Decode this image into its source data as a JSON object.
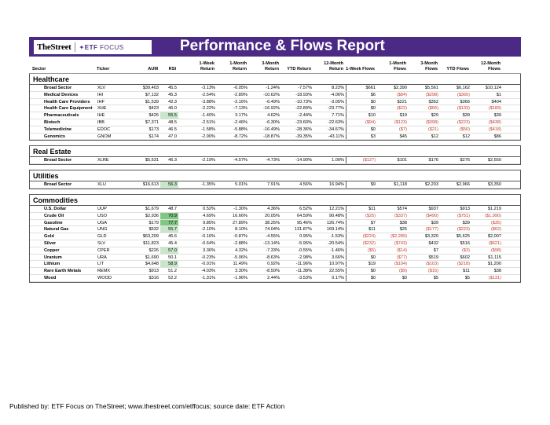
{
  "header": {
    "logo_thestreet": "TheStreet",
    "logo_etf": "ETF",
    "logo_focus": "FOCUS",
    "title": "Performance & Flows Report"
  },
  "columns": {
    "sector": "Sector",
    "ticker": "Ticker",
    "aum": "AUM",
    "rsi": "RSI",
    "ret_1w": "1-Week Return",
    "ret_1m": "1-Month Return",
    "ret_3m": "3-Month Return",
    "ret_ytd": "YTD Return",
    "ret_12m": "12-Month Return",
    "flow_1w": "1-Week Flows",
    "flow_1m": "1-Month Flows",
    "flow_3m": "3-Month Flows",
    "flow_ytd": "YTD Flows",
    "flow_12m": "12-Month Flows"
  },
  "sections": [
    {
      "name": "Healthcare",
      "rows": [
        [
          "Broad Sector",
          "XLV",
          "$39,403",
          "45.5",
          "-3.13%",
          "-0.05%",
          "-1.24%",
          "-7.57%",
          "8.22%",
          "$661",
          "$2,390",
          "$5,561",
          "$6,162",
          "$10,124"
        ],
        [
          "Medical Devices",
          "IHI",
          "$7,132",
          "45.3",
          "-2.54%",
          "-2.89%",
          "-10.62%",
          "-18.93%",
          "-4.06%",
          "$6",
          "($84)",
          "($298)",
          "($365)",
          "$1"
        ],
        [
          "Health Care Providers",
          "IHF",
          "$1,539",
          "42.3",
          "-3.88%",
          "-2.16%",
          "-6.49%",
          "-10.73%",
          "-3.05%",
          "$0",
          "$221",
          "$352",
          "$366",
          "$404"
        ],
        [
          "Health Care Equipment",
          "XHE",
          "$423",
          "46.0",
          "-2.22%",
          "-7.13%",
          "-16.92%",
          "-22.89%",
          "-23.77%",
          "$0",
          "($22)",
          "($66)",
          "($133)",
          "($189)"
        ],
        [
          "Pharmaceuticals",
          "IHE",
          "$426",
          "55.5",
          "-1.40%",
          "3.17%",
          "4.62%",
          "-2.44%",
          "7.71%",
          "$10",
          "$19",
          "$29",
          "$39",
          "$39"
        ],
        [
          "Biotech",
          "IBB",
          "$7,371",
          "48.5",
          "-2.51%",
          "-2.46%",
          "-6.30%",
          "-23.60%",
          "-22.63%",
          "($94)",
          "($123)",
          "($398)",
          "($223)",
          "($438)"
        ],
        [
          "Telemedicine",
          "EDOC",
          "$173",
          "46.5",
          "-1.58%",
          "-5.88%",
          "-16.49%",
          "-28.36%",
          "-34.67%",
          "$0",
          "($7)",
          "($21)",
          "($56)",
          "($418)"
        ],
        [
          "Genomics",
          "GNOM",
          "$174",
          "47.0",
          "-2.90%",
          "-8.72%",
          "-18.87%",
          "-39.35%",
          "-43.11%",
          "$3",
          "$45",
          "$12",
          "$12",
          "$86"
        ]
      ]
    },
    {
      "name": "Real Estate",
      "rows": [
        [
          "Broad Sector",
          "XLRE",
          "$5,531",
          "46.3",
          "-2.19%",
          "-4.57%",
          "-4.73%",
          "-14.90%",
          "1.09%",
          "($127)",
          "$101",
          "$176",
          "$276",
          "$2,550"
        ]
      ]
    },
    {
      "name": "Utilities",
      "rows": [
        [
          "Broad Sector",
          "XLU",
          "$16,613",
          "56.3",
          "-1.35%",
          "5.01%",
          "7.91%",
          "4.56%",
          "16.94%",
          "$9",
          "$1,118",
          "$2,203",
          "$2,966",
          "$3,350"
        ]
      ]
    },
    {
      "name": "Commodities",
      "rows": [
        [
          "U.S. Dollar",
          "UUP",
          "$1,679",
          "48.7",
          "0.52%",
          "-1.30%",
          "4.36%",
          "6.52%",
          "12.21%",
          "$11",
          "$574",
          "$937",
          "$913",
          "$1,219"
        ],
        [
          "Crude Oil",
          "USO",
          "$2,936",
          "70.9",
          "4.69%",
          "16.66%",
          "20.05%",
          "64.59%",
          "90.48%",
          "($25)",
          "($337)",
          "($490)",
          "($751)",
          "($1,990)"
        ],
        [
          "Gasoline",
          "UGA",
          "$179",
          "77.7",
          "9.85%",
          "27.89%",
          "38.25%",
          "95.46%",
          "126.74%",
          "$7",
          "$38",
          "$39",
          "$39",
          "($35)"
        ],
        [
          "Natural Gas",
          "UNG",
          "$532",
          "55.7",
          "-2.10%",
          "8.10%",
          "74.04%",
          "131.87%",
          "169.14%",
          "$11",
          "$25",
          "($177)",
          "($223)",
          "($62)"
        ],
        [
          "Gold",
          "GLD",
          "$63,209",
          "46.6",
          "-0.16%",
          "-0.87%",
          "-4.55%",
          "0.95%",
          "-1.53%",
          "($224)",
          "($2,289)",
          "$3,320",
          "$5,625",
          "$2,007"
        ],
        [
          "Silver",
          "SLV",
          "$11,823",
          "45.4",
          "-0.64%",
          "-2.88%",
          "-13.14%",
          "-5.95%",
          "-20.54%",
          "($232)",
          "($743)",
          "$432",
          "$516",
          "($621)"
        ],
        [
          "Copper",
          "CPER",
          "$226",
          "57.0",
          "3.36%",
          "4.32%",
          "-7.33%",
          "-0.55%",
          "-1.46%",
          "($5)",
          "($14)",
          "$7",
          "($3)",
          "($98)"
        ],
        [
          "Uranium",
          "URA",
          "$1,690",
          "50.1",
          "-0.23%",
          "-5.06%",
          "-8.63%",
          "-2.98%",
          "3.66%",
          "$0",
          "($77)",
          "$519",
          "$602",
          "$1,115"
        ],
        [
          "Lithium",
          "LIT",
          "$4,648",
          "58.9",
          "-0.01%",
          "11.49%",
          "0.92%",
          "-11.96%",
          "10.97%",
          "$19",
          "($104)",
          "($103)",
          "($218)",
          "$1,200"
        ],
        [
          "Rare Earth Metals",
          "REMX",
          "$913",
          "51.2",
          "-4.03%",
          "3.30%",
          "-8.50%",
          "-11.38%",
          "22.55%",
          "$0",
          "($9)",
          "($15)",
          "$11",
          "$38"
        ],
        [
          "Wood",
          "WOOD",
          "$316",
          "52.2",
          "-1.31%",
          "-1.96%",
          "2.44%",
          "-3.53%",
          "0.17%",
          "$0",
          "$0",
          "$5",
          "$5",
          "($131)"
        ]
      ]
    }
  ],
  "rsi_highlight": {
    "vhi": [
      "70.9",
      "77.7"
    ],
    "hi": [
      "55.5",
      "56.3",
      "55.7",
      "57.0",
      "58.9"
    ]
  },
  "colors": {
    "banner": "#4b2a86",
    "negative_flow": "#c0392b",
    "rsi_high": "#c8e6c9",
    "rsi_very_high": "#81c784"
  },
  "footer": "Published by: ETF Focus on TheStreet; www.thestreet.com/etffocus; source date: ETF Action"
}
